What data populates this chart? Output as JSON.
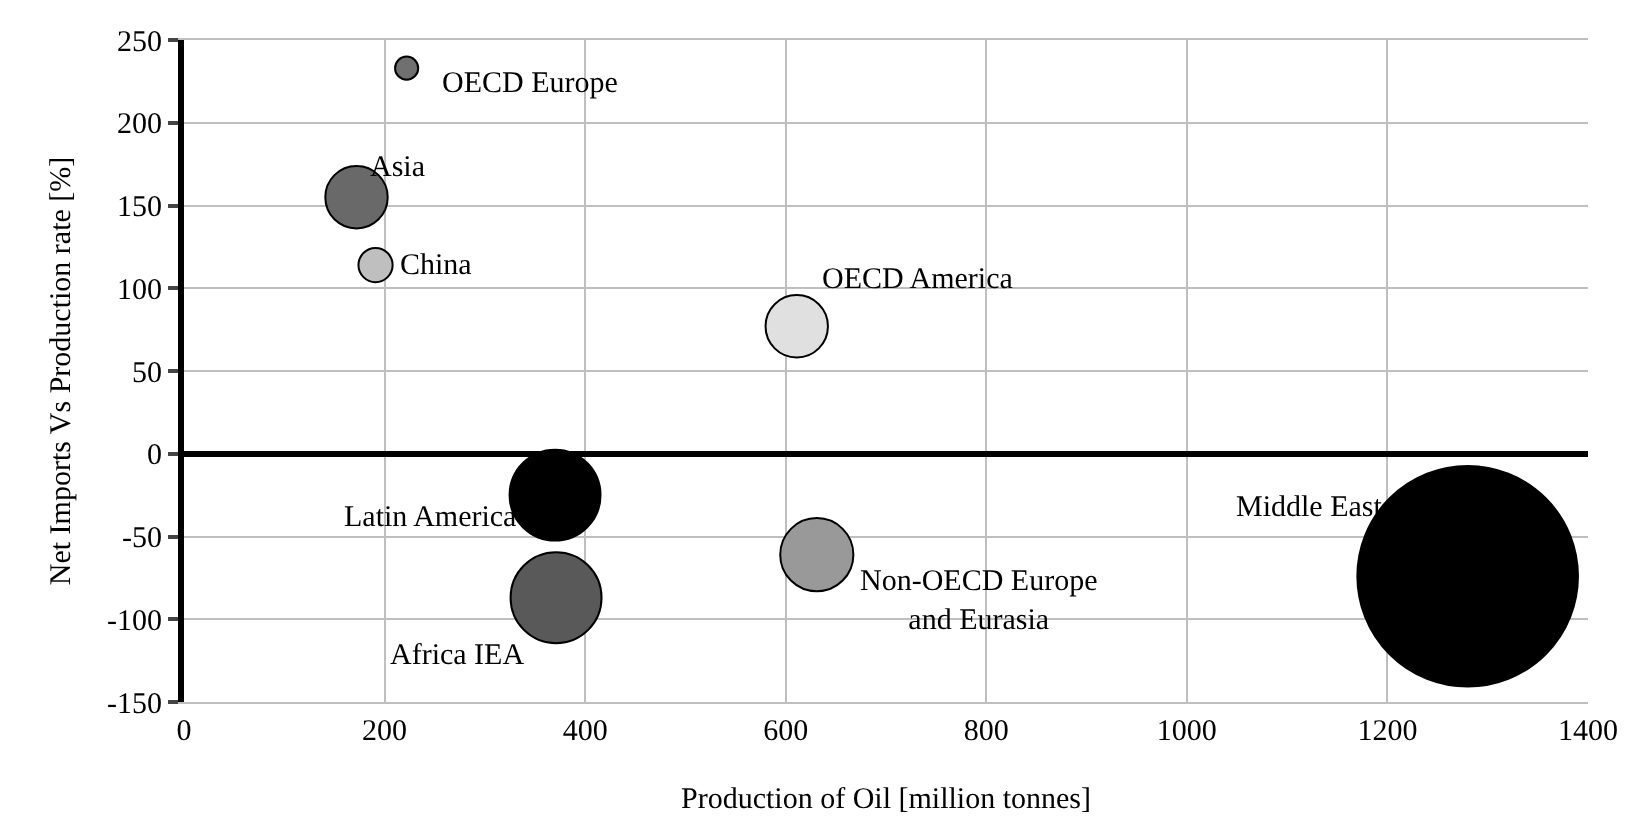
{
  "chart_data": {
    "type": "bubble",
    "xlabel": "Production of Oil [million tonnes]",
    "ylabel": "Net Imports Vs Production rate [%]",
    "xlim": [
      0,
      1400
    ],
    "xticks": [
      0,
      200,
      400,
      600,
      800,
      1000,
      1200,
      1400
    ],
    "ylim": [
      -150,
      250
    ],
    "yticks": [
      -150,
      -100,
      -50,
      0,
      50,
      100,
      150,
      200,
      250
    ],
    "grid": true,
    "legend": false,
    "series": [
      {
        "name": "OECD Europe",
        "color": "#707070",
        "x": [
          222
        ],
        "values": [
          233
        ],
        "sizes": [
          0.011
        ]
      },
      {
        "name": "Asia",
        "color": "#696969",
        "x": [
          172
        ],
        "values": [
          155
        ],
        "sizes": [
          0.08
        ]
      },
      {
        "name": "China",
        "color": "#bfbfbf",
        "x": [
          191
        ],
        "values": [
          114
        ],
        "sizes": [
          0.024
        ]
      },
      {
        "name": "OECD America",
        "color": "#e0e0e0",
        "x": [
          611
        ],
        "values": [
          77
        ],
        "sizes": [
          0.08
        ]
      },
      {
        "name": "Latin America",
        "color": "#000000",
        "x": [
          370
        ],
        "values": [
          -25
        ],
        "sizes": [
          0.17
        ]
      },
      {
        "name": "Africa IEA",
        "color": "#595959",
        "x": [
          371
        ],
        "values": [
          -87
        ],
        "sizes": [
          0.17
        ]
      },
      {
        "name": "Non-OECD Europe and Eurasia",
        "color": "#999999",
        "x": [
          631
        ],
        "values": [
          -61
        ],
        "sizes": [
          0.11
        ]
      },
      {
        "name": "Middle East",
        "color": "#000000",
        "x": [
          1280
        ],
        "values": [
          -74
        ],
        "sizes": [
          1
        ]
      }
    ]
  }
}
